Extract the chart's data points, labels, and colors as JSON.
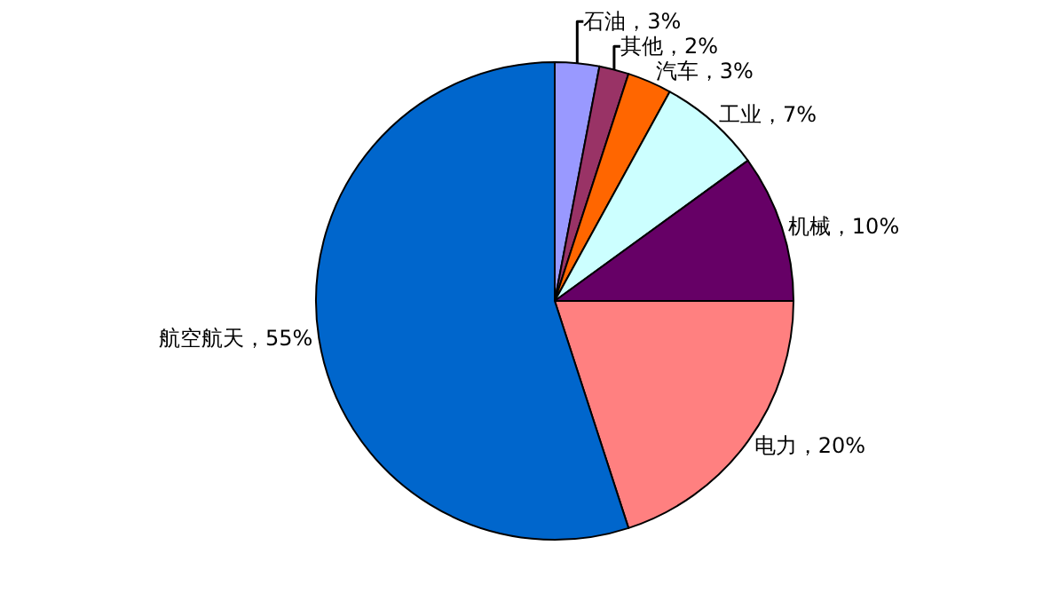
{
  "chart_data": {
    "type": "pie",
    "categories": [
      "石油",
      "其他",
      "汽车",
      "工业",
      "机械",
      "电力",
      "航空航天"
    ],
    "values": [
      3,
      2,
      3,
      7,
      10,
      20,
      55
    ],
    "colors": [
      "#9999ff",
      "#993366",
      "#ff6600",
      "#ccffff",
      "#660066",
      "#ff8080",
      "#0066cc"
    ],
    "value_labels": [
      "3%",
      "2%",
      "3%",
      "7%",
      "10%",
      "20%",
      "55%"
    ],
    "legend": false
  }
}
